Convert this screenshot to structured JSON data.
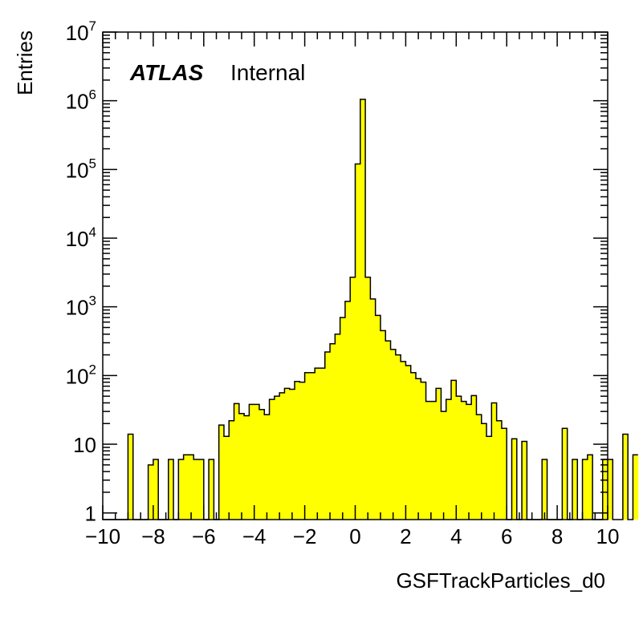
{
  "chart_data": {
    "type": "bar",
    "histogram": true,
    "log_y": true,
    "xlim": [
      -10,
      10
    ],
    "ylim": [
      0.8,
      10000000
    ],
    "bin_width": 0.2,
    "fill_color": "#ffff00",
    "line_color": "#000000",
    "xlabel": "GSFTrackParticles_d0",
    "ylabel": "Entries",
    "label_bold": "ATLAS",
    "label_rest": "Internal",
    "x_ticks": [
      {
        "value": -10,
        "label": "−10"
      },
      {
        "value": -8,
        "label": "−8"
      },
      {
        "value": -6,
        "label": "−6"
      },
      {
        "value": -4,
        "label": "−4"
      },
      {
        "value": -2,
        "label": "−2"
      },
      {
        "value": 0,
        "label": "0"
      },
      {
        "value": 2,
        "label": "2"
      },
      {
        "value": 4,
        "label": "4"
      },
      {
        "value": 6,
        "label": "6"
      },
      {
        "value": 8,
        "label": "8"
      },
      {
        "value": 10,
        "label": "10"
      }
    ],
    "y_ticks": [
      {
        "value": 1,
        "label": "1"
      },
      {
        "value": 10,
        "label": "10"
      },
      {
        "value": 100,
        "base": "10",
        "exp": "2"
      },
      {
        "value": 1000,
        "base": "10",
        "exp": "3"
      },
      {
        "value": 10000,
        "base": "10",
        "exp": "4"
      },
      {
        "value": 100000,
        "base": "10",
        "exp": "5"
      },
      {
        "value": 1000000,
        "base": "10",
        "exp": "6"
      },
      {
        "value": 10000000,
        "base": "10",
        "exp": "7"
      }
    ],
    "values": [
      0,
      0,
      0,
      0,
      0,
      14,
      0,
      0,
      0,
      5,
      6,
      0,
      0,
      6,
      0,
      6,
      7,
      7,
      6,
      6,
      0,
      6,
      0,
      19,
      13,
      22,
      39,
      28,
      26,
      38,
      38,
      32,
      27,
      45,
      50,
      56,
      65,
      63,
      82,
      80,
      110,
      110,
      128,
      128,
      220,
      290,
      400,
      700,
      1200,
      2700,
      120000,
      1050000,
      2700,
      1300,
      750,
      450,
      320,
      240,
      200,
      160,
      140,
      110,
      90,
      80,
      42,
      42,
      65,
      30,
      45,
      85,
      50,
      42,
      38,
      51,
      27,
      20,
      13,
      40,
      22,
      17,
      0,
      12,
      0,
      11,
      0,
      0,
      0,
      6,
      0,
      0,
      0,
      17,
      0,
      6,
      0,
      6,
      7,
      0,
      0,
      6,
      6,
      0,
      0,
      14,
      0,
      7
    ]
  }
}
